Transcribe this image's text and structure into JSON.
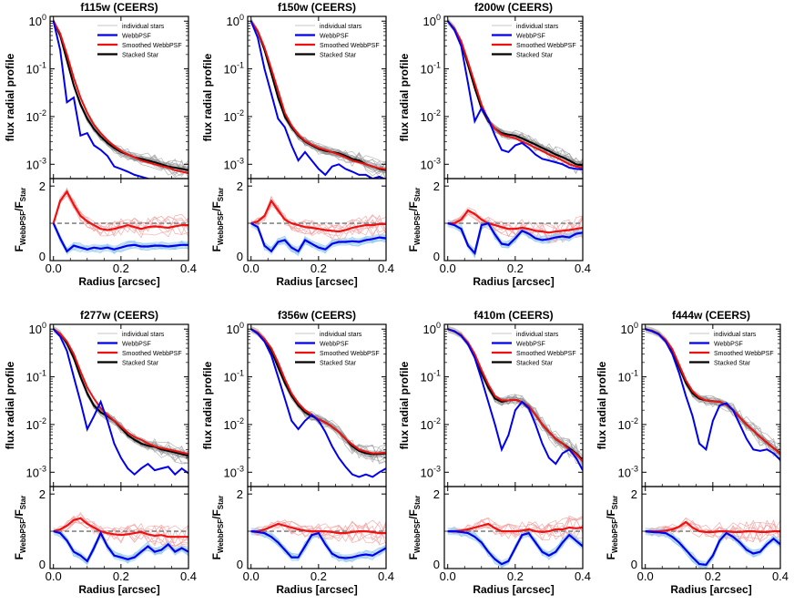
{
  "chart_data": {
    "type": "line",
    "x_label": "Radius [arcsec]",
    "y_label_top": "flux radial profile",
    "y_label_bottom_main": "F",
    "y_label_bottom_sub1": "WebbPSF",
    "y_label_bottom_sep": "/F",
    "y_label_bottom_sub2": "Star",
    "xlim": [
      -0.01,
      0.4
    ],
    "x_ticks": [
      0.0,
      0.2,
      0.4
    ],
    "x_tick_labels": [
      "0.0",
      "0.2",
      "0.4"
    ],
    "top_ylim_log10": [
      -3.3,
      0.1
    ],
    "top_y_ticks": [
      {
        "value": 1,
        "base": "10",
        "exp": "0"
      },
      {
        "value": 0.1,
        "base": "10",
        "exp": "-1"
      },
      {
        "value": 0.01,
        "base": "10",
        "exp": "-2"
      },
      {
        "value": 0.001,
        "base": "10",
        "exp": "-3"
      }
    ],
    "bottom_ylim": [
      0,
      2.2
    ],
    "bottom_y_ticks": [
      0,
      2
    ],
    "reference_ratio": 1.0,
    "legend": [
      {
        "key": "individual",
        "label": "individual stars",
        "color": "#b4b4b4"
      },
      {
        "key": "webb",
        "label": "WebbPSF",
        "color": "#0000ee"
      },
      {
        "key": "smoothed",
        "label": "Smoothed WebbPSF",
        "color": "#ee1111"
      },
      {
        "key": "stacked",
        "label": "Stacked Star",
        "color": "#000000"
      }
    ],
    "colors": {
      "individual": "#aaaaaa",
      "webb": "#0000ee",
      "smoothed": "#ee1111",
      "stacked": "#000000",
      "ratio_ind_red": "#f4a0a0",
      "ratio_ind_blue": "#8fc8ec",
      "reference": "#888888"
    },
    "panels": [
      {
        "title": "f115w (CEERS)",
        "x": [
          0.0,
          0.02,
          0.04,
          0.06,
          0.08,
          0.1,
          0.12,
          0.14,
          0.16,
          0.18,
          0.2,
          0.22,
          0.24,
          0.26,
          0.28,
          0.3,
          0.32,
          0.34,
          0.36,
          0.38,
          0.4
        ],
        "stacked": [
          1.0,
          0.5,
          0.15,
          0.045,
          0.018,
          0.009,
          0.0055,
          0.0038,
          0.0028,
          0.0022,
          0.0018,
          0.0016,
          0.0014,
          0.0013,
          0.0012,
          0.0011,
          0.001,
          0.0009,
          0.00085,
          0.0008,
          0.00075
        ],
        "smoothed": [
          1.0,
          0.55,
          0.2,
          0.065,
          0.025,
          0.012,
          0.0068,
          0.0045,
          0.0032,
          0.0024,
          0.0019,
          0.0016,
          0.0014,
          0.0012,
          0.0011,
          0.001,
          0.00092,
          0.00085,
          0.00075,
          0.0007,
          0.00065
        ],
        "webb": [
          1.0,
          0.25,
          0.02,
          0.025,
          0.004,
          0.0045,
          0.0025,
          0.002,
          0.0015,
          0.0009,
          0.0008,
          0.0007,
          0.0006,
          0.00055,
          0.0005,
          0.00045,
          0.0004,
          0.00038,
          0.00036,
          0.00034,
          0.00032
        ],
        "ratio_smoothed": [
          1.0,
          1.6,
          1.85,
          1.5,
          1.2,
          1.05,
          0.95,
          0.85,
          0.82,
          0.85,
          0.9,
          0.95,
          0.9,
          0.85,
          0.9,
          0.92,
          0.9,
          0.88,
          0.92,
          0.95,
          0.95
        ],
        "ratio_webb": [
          1.0,
          0.6,
          0.25,
          0.4,
          0.35,
          0.3,
          0.35,
          0.32,
          0.35,
          0.3,
          0.35,
          0.4,
          0.42,
          0.38,
          0.38,
          0.4,
          0.4,
          0.38,
          0.4,
          0.42,
          0.42
        ]
      },
      {
        "title": "f150w (CEERS)",
        "x": [
          0.0,
          0.02,
          0.04,
          0.06,
          0.08,
          0.1,
          0.12,
          0.14,
          0.16,
          0.18,
          0.2,
          0.22,
          0.24,
          0.26,
          0.28,
          0.3,
          0.32,
          0.34,
          0.36,
          0.38,
          0.4
        ],
        "stacked": [
          1.0,
          0.6,
          0.25,
          0.08,
          0.025,
          0.01,
          0.006,
          0.004,
          0.003,
          0.0025,
          0.0021,
          0.0019,
          0.0018,
          0.0017,
          0.0015,
          0.0013,
          0.0012,
          0.001,
          0.0009,
          0.0008,
          0.00075
        ],
        "smoothed": [
          1.0,
          0.62,
          0.28,
          0.1,
          0.035,
          0.012,
          0.0065,
          0.0042,
          0.0031,
          0.0026,
          0.0022,
          0.002,
          0.0018,
          0.0016,
          0.0014,
          0.0012,
          0.0011,
          0.001,
          0.0009,
          0.00082,
          0.00078
        ],
        "webb": [
          1.0,
          0.45,
          0.1,
          0.03,
          0.009,
          0.006,
          0.0025,
          0.0012,
          0.0018,
          0.0012,
          0.0008,
          0.0006,
          0.0009,
          0.001,
          0.0008,
          0.0007,
          0.0006,
          0.0006,
          0.0005,
          0.00055,
          0.00048
        ],
        "ratio_smoothed": [
          1.0,
          1.05,
          1.2,
          1.6,
          1.35,
          1.1,
          1.0,
          0.95,
          0.9,
          0.88,
          0.85,
          0.82,
          0.8,
          0.78,
          0.82,
          0.88,
          0.92,
          0.95,
          0.95,
          0.98,
          0.98
        ],
        "ratio_webb": [
          1.0,
          0.9,
          0.4,
          0.25,
          0.5,
          0.55,
          0.35,
          0.25,
          0.55,
          0.45,
          0.35,
          0.3,
          0.45,
          0.5,
          0.5,
          0.52,
          0.5,
          0.55,
          0.58,
          0.62,
          0.6
        ]
      },
      {
        "title": "f200w (CEERS)",
        "x": [
          0.0,
          0.02,
          0.04,
          0.06,
          0.08,
          0.1,
          0.12,
          0.14,
          0.16,
          0.18,
          0.2,
          0.22,
          0.24,
          0.26,
          0.28,
          0.3,
          0.32,
          0.34,
          0.36,
          0.38,
          0.4
        ],
        "stacked": [
          1.0,
          0.7,
          0.35,
          0.12,
          0.04,
          0.015,
          0.008,
          0.0055,
          0.0045,
          0.0042,
          0.004,
          0.0035,
          0.003,
          0.0026,
          0.0022,
          0.0019,
          0.0016,
          0.0014,
          0.0012,
          0.001,
          0.00095
        ],
        "smoothed": [
          1.0,
          0.7,
          0.38,
          0.14,
          0.05,
          0.018,
          0.0085,
          0.0055,
          0.0042,
          0.0038,
          0.0035,
          0.003,
          0.0026,
          0.0022,
          0.0019,
          0.0016,
          0.0014,
          0.0012,
          0.001,
          0.0009,
          0.00085
        ],
        "webb": [
          1.0,
          0.65,
          0.3,
          0.05,
          0.008,
          0.015,
          0.009,
          0.004,
          0.002,
          0.0018,
          0.0025,
          0.0028,
          0.0022,
          0.0016,
          0.0013,
          0.0012,
          0.0011,
          0.001,
          0.00085,
          0.0008,
          0.00078
        ],
        "ratio_smoothed": [
          1.0,
          1.0,
          1.1,
          1.35,
          1.25,
          1.1,
          1.0,
          0.95,
          0.9,
          0.85,
          0.85,
          0.88,
          0.85,
          0.8,
          0.78,
          0.75,
          0.78,
          0.8,
          0.82,
          0.85,
          0.88
        ],
        "ratio_webb": [
          1.0,
          0.95,
          0.85,
          0.4,
          0.2,
          0.95,
          1.0,
          0.7,
          0.45,
          0.42,
          0.6,
          0.8,
          0.72,
          0.6,
          0.55,
          0.58,
          0.62,
          0.65,
          0.62,
          0.72,
          0.75
        ]
      },
      {
        "title": "f277w (CEERS)",
        "x": [
          0.0,
          0.02,
          0.04,
          0.06,
          0.08,
          0.1,
          0.12,
          0.14,
          0.16,
          0.18,
          0.2,
          0.22,
          0.24,
          0.26,
          0.28,
          0.3,
          0.32,
          0.34,
          0.36,
          0.38,
          0.4
        ],
        "stacked": [
          1.0,
          0.8,
          0.5,
          0.25,
          0.1,
          0.045,
          0.025,
          0.018,
          0.015,
          0.012,
          0.0085,
          0.006,
          0.0048,
          0.004,
          0.0036,
          0.0034,
          0.003,
          0.0028,
          0.0026,
          0.0024,
          0.0022
        ],
        "smoothed": [
          1.0,
          0.8,
          0.55,
          0.3,
          0.13,
          0.06,
          0.035,
          0.022,
          0.016,
          0.012,
          0.009,
          0.0068,
          0.0055,
          0.0048,
          0.004,
          0.0035,
          0.0032,
          0.003,
          0.0028,
          0.0026,
          0.0024
        ],
        "webb": [
          1.0,
          0.7,
          0.35,
          0.1,
          0.03,
          0.008,
          0.015,
          0.03,
          0.012,
          0.004,
          0.002,
          0.0012,
          0.0009,
          0.0012,
          0.0015,
          0.0011,
          0.0012,
          0.0013,
          0.0009,
          0.0012,
          0.00095
        ],
        "ratio_smoothed": [
          1.0,
          1.05,
          1.15,
          1.3,
          1.35,
          1.2,
          1.1,
          1.0,
          0.95,
          0.92,
          0.9,
          0.92,
          0.95,
          0.98,
          0.92,
          0.88,
          0.9,
          0.85,
          0.85,
          0.85,
          0.85
        ],
        "ratio_webb": [
          1.0,
          0.95,
          0.75,
          0.45,
          0.35,
          0.2,
          0.55,
          0.95,
          0.6,
          0.35,
          0.3,
          0.25,
          0.3,
          0.45,
          0.6,
          0.45,
          0.5,
          0.65,
          0.45,
          0.55,
          0.45
        ]
      },
      {
        "title": "f356w (CEERS)",
        "x": [
          0.0,
          0.02,
          0.04,
          0.06,
          0.08,
          0.1,
          0.12,
          0.14,
          0.16,
          0.18,
          0.2,
          0.22,
          0.24,
          0.26,
          0.28,
          0.3,
          0.32,
          0.34,
          0.36,
          0.38,
          0.4
        ],
        "stacked": [
          1.0,
          0.85,
          0.6,
          0.35,
          0.16,
          0.075,
          0.04,
          0.025,
          0.018,
          0.015,
          0.013,
          0.011,
          0.009,
          0.007,
          0.005,
          0.0035,
          0.0028,
          0.0025,
          0.0024,
          0.0024,
          0.0025
        ],
        "smoothed": [
          1.0,
          0.85,
          0.62,
          0.4,
          0.2,
          0.09,
          0.045,
          0.028,
          0.02,
          0.016,
          0.013,
          0.011,
          0.009,
          0.007,
          0.005,
          0.0038,
          0.003,
          0.0027,
          0.0025,
          0.0025,
          0.0026
        ],
        "webb": [
          1.0,
          0.8,
          0.55,
          0.28,
          0.1,
          0.035,
          0.012,
          0.008,
          0.012,
          0.016,
          0.012,
          0.007,
          0.0035,
          0.002,
          0.0013,
          0.0009,
          0.0008,
          0.0009,
          0.0008,
          0.001,
          0.0012
        ],
        "ratio_smoothed": [
          1.0,
          1.0,
          1.05,
          1.12,
          1.2,
          1.15,
          1.1,
          1.05,
          1.02,
          1.0,
          1.0,
          1.0,
          0.98,
          0.95,
          0.95,
          0.98,
          1.0,
          1.0,
          0.98,
          0.95,
          0.95
        ],
        "ratio_webb": [
          1.0,
          0.98,
          0.95,
          0.85,
          0.7,
          0.5,
          0.3,
          0.3,
          0.6,
          0.9,
          0.95,
          0.65,
          0.4,
          0.3,
          0.28,
          0.3,
          0.35,
          0.38,
          0.35,
          0.45,
          0.55
        ]
      },
      {
        "title": "f410m (CEERS)",
        "x": [
          0.0,
          0.02,
          0.04,
          0.06,
          0.08,
          0.1,
          0.12,
          0.14,
          0.16,
          0.18,
          0.2,
          0.22,
          0.24,
          0.26,
          0.28,
          0.3,
          0.32,
          0.34,
          0.36,
          0.38,
          0.4
        ],
        "stacked": [
          1.0,
          0.9,
          0.75,
          0.5,
          0.28,
          0.12,
          0.06,
          0.035,
          0.03,
          0.032,
          0.033,
          0.03,
          0.024,
          0.016,
          0.01,
          0.007,
          0.005,
          0.004,
          0.0032,
          0.0025,
          0.0018
        ],
        "smoothed": [
          1.0,
          0.9,
          0.75,
          0.52,
          0.3,
          0.14,
          0.07,
          0.04,
          0.032,
          0.032,
          0.033,
          0.03,
          0.024,
          0.016,
          0.01,
          0.007,
          0.005,
          0.004,
          0.003,
          0.0024,
          0.0017
        ],
        "webb": [
          1.0,
          0.9,
          0.72,
          0.48,
          0.25,
          0.09,
          0.03,
          0.01,
          0.003,
          0.006,
          0.02,
          0.03,
          0.022,
          0.01,
          0.004,
          0.002,
          0.0015,
          0.0025,
          0.003,
          0.002,
          0.0011
        ],
        "ratio_smoothed": [
          1.0,
          1.0,
          1.02,
          1.05,
          1.1,
          1.15,
          1.2,
          1.08,
          1.0,
          1.0,
          1.0,
          1.02,
          1.05,
          1.0,
          0.98,
          1.0,
          1.05,
          1.05,
          1.1,
          1.08,
          1.1
        ],
        "ratio_webb": [
          1.0,
          1.0,
          0.98,
          0.95,
          0.85,
          0.7,
          0.45,
          0.25,
          0.12,
          0.2,
          0.55,
          0.9,
          0.95,
          0.7,
          0.45,
          0.35,
          0.45,
          0.7,
          0.9,
          0.75,
          0.6
        ]
      },
      {
        "title": "f444w (CEERS)",
        "x": [
          0.0,
          0.02,
          0.04,
          0.06,
          0.08,
          0.1,
          0.12,
          0.14,
          0.16,
          0.18,
          0.2,
          0.22,
          0.24,
          0.26,
          0.28,
          0.3,
          0.32,
          0.34,
          0.36,
          0.38,
          0.4
        ],
        "stacked": [
          1.0,
          0.92,
          0.8,
          0.58,
          0.35,
          0.16,
          0.075,
          0.045,
          0.035,
          0.032,
          0.031,
          0.03,
          0.026,
          0.02,
          0.014,
          0.01,
          0.0075,
          0.0055,
          0.0042,
          0.0032,
          0.0025
        ],
        "smoothed": [
          1.0,
          0.92,
          0.8,
          0.6,
          0.38,
          0.18,
          0.085,
          0.05,
          0.037,
          0.032,
          0.031,
          0.03,
          0.026,
          0.02,
          0.014,
          0.01,
          0.0075,
          0.0055,
          0.0042,
          0.0032,
          0.0024
        ],
        "webb": [
          1.0,
          0.9,
          0.78,
          0.55,
          0.3,
          0.12,
          0.04,
          0.015,
          0.004,
          0.003,
          0.012,
          0.025,
          0.028,
          0.02,
          0.01,
          0.005,
          0.003,
          0.0028,
          0.003,
          0.0025,
          0.0018
        ],
        "ratio_smoothed": [
          1.0,
          1.0,
          1.0,
          1.02,
          1.05,
          1.12,
          1.25,
          1.1,
          1.0,
          0.98,
          0.98,
          1.0,
          1.0,
          0.98,
          0.98,
          1.0,
          1.0,
          0.98,
          0.98,
          1.0,
          1.0
        ],
        "ratio_webb": [
          1.0,
          0.98,
          0.97,
          0.95,
          0.85,
          0.7,
          0.5,
          0.3,
          0.12,
          0.1,
          0.35,
          0.75,
          0.95,
          0.85,
          0.7,
          0.5,
          0.4,
          0.45,
          0.65,
          0.8,
          0.65
        ]
      }
    ]
  }
}
